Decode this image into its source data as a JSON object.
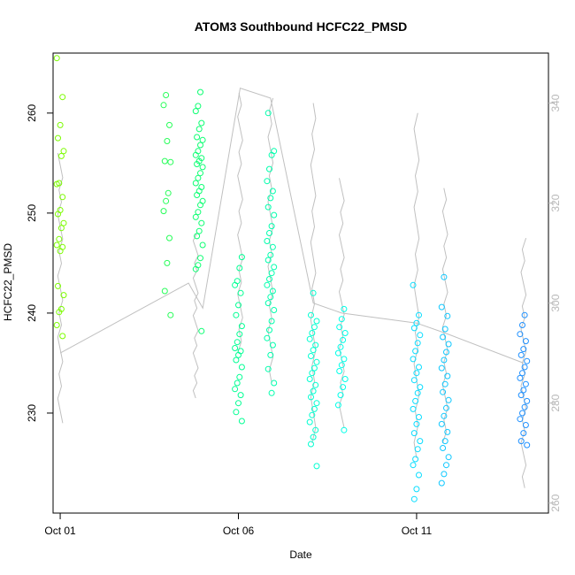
{
  "chart_data": {
    "type": "scatter",
    "title": "ATOM3 Southbound HCFC22_PMSD",
    "xlabel": "Date",
    "ylabel": "HCFC22_PMSD",
    "x_ticks": [
      "Oct 01",
      "Oct 06",
      "Oct 11"
    ],
    "y_ticks_left": [
      "230",
      "240",
      "250",
      "260"
    ],
    "y_ticks_right": [
      "260",
      "280",
      "300",
      "320",
      "340"
    ],
    "ylim_left": [
      220,
      266
    ],
    "ylim_right": [
      258,
      350
    ],
    "xlim_days": [
      0.8,
      14.7
    ],
    "grid": false,
    "legend": "none",
    "point_colors": [
      "#7cfc00",
      "#00ff7f",
      "#00ffff",
      "#1e90ff"
    ],
    "line_color": "#c0c0c0",
    "clusters": [
      {
        "day": 1.0,
        "ys": [
          265.5,
          261.6,
          258.8,
          257.5,
          256.2,
          255.7,
          253.0,
          252.9,
          251.6,
          250.3,
          249.9,
          249.0,
          248.5,
          247.4,
          246.8,
          246.6,
          246.2,
          242.7,
          241.8,
          240.4,
          240.1,
          238.8,
          237.7
        ]
      },
      {
        "day": 4.0,
        "ys": [
          261.8,
          260.8,
          258.8,
          257.2,
          255.2,
          255.1,
          252.0,
          251.2,
          250.2,
          247.5,
          245.0,
          242.2,
          239.8
        ]
      },
      {
        "day": 4.9,
        "ys": [
          262.1,
          260.7,
          260.2,
          259.0,
          258.4,
          257.6,
          257.3,
          256.8,
          256.2,
          255.8,
          255.5,
          255.2,
          254.9,
          254.6,
          254.0,
          253.5,
          253.0,
          252.6,
          252.2,
          251.8,
          251.2,
          250.8,
          250.1,
          249.6,
          249.0,
          248.2,
          247.7,
          246.8,
          245.5,
          244.8,
          244.4,
          238.2
        ]
      },
      {
        "day": 6.0,
        "ys": [
          245.6,
          244.5,
          243.2,
          242.8,
          242.0,
          240.8,
          239.8,
          238.7,
          237.9,
          237.1,
          236.5,
          236.2,
          235.8,
          235.3,
          234.6,
          233.6,
          233.0,
          232.4,
          231.8,
          231.0,
          230.1,
          229.2
        ]
      },
      {
        "day": 6.9,
        "ys": [
          260.0,
          256.2,
          255.8,
          254.4,
          253.2,
          252.2,
          251.5,
          250.6,
          249.8,
          248.7,
          248.0,
          247.2,
          246.6,
          245.8,
          245.3,
          244.6,
          244.0,
          243.4,
          242.8,
          242.2,
          241.6,
          241.0,
          240.3,
          239.2,
          238.3,
          237.5,
          236.8,
          235.8,
          234.4,
          233.0,
          232.0
        ]
      },
      {
        "day": 8.1,
        "ys": [
          242.0,
          239.8,
          239.2,
          238.6,
          238.0,
          237.4,
          236.8,
          236.3,
          235.7,
          235.1,
          234.5,
          234.0,
          233.4,
          232.8,
          232.2,
          231.6,
          231.0,
          230.4,
          229.8,
          229.1,
          228.3,
          227.6,
          226.9,
          224.7
        ]
      },
      {
        "day": 8.9,
        "ys": [
          240.4,
          239.4,
          238.6,
          238.0,
          237.3,
          236.6,
          236.0,
          235.4,
          234.8,
          234.2,
          233.4,
          232.6,
          231.8,
          230.8,
          228.3
        ]
      },
      {
        "day": 11.0,
        "ys": [
          242.8,
          239.8,
          239.0,
          238.5,
          237.8,
          237.0,
          236.2,
          235.4,
          234.6,
          234.0,
          233.3,
          232.6,
          232.0,
          231.2,
          230.4,
          229.6,
          228.9,
          228.0,
          227.2,
          226.4,
          225.4,
          224.8,
          223.8,
          222.4,
          221.4
        ]
      },
      {
        "day": 11.8,
        "ys": [
          243.6,
          240.6,
          239.7,
          238.4,
          237.6,
          236.9,
          236.1,
          235.3,
          234.5,
          233.7,
          232.9,
          232.1,
          231.3,
          230.5,
          229.7,
          228.9,
          228.1,
          227.2,
          226.5,
          225.6,
          224.8,
          223.9,
          223.0
        ]
      },
      {
        "day": 14.0,
        "ys": [
          239.8,
          238.8,
          237.9,
          237.2,
          236.4,
          235.8,
          235.2,
          234.6,
          234.0,
          233.5,
          232.9,
          232.3,
          231.8,
          231.2,
          230.6,
          230.0,
          229.4,
          228.8,
          228.0,
          227.2,
          226.8
        ]
      }
    ],
    "right_axis_connections": [
      [
        1.0,
        290.0
      ],
      [
        4.6,
        304.0
      ],
      [
        5.0,
        299.0
      ],
      [
        6.05,
        343.0
      ],
      [
        6.9,
        341.0
      ],
      [
        8.1,
        300.0
      ],
      [
        8.9,
        298.0
      ],
      [
        11.0,
        296.0
      ],
      [
        11.8,
        294.0
      ],
      [
        14.0,
        288.0
      ]
    ],
    "right_axis_spikes": [
      {
        "day": 1.0,
        "range": [
          276,
          330
        ]
      },
      {
        "day": 4.8,
        "range": [
          281,
          314
        ]
      },
      {
        "day": 6.05,
        "range": [
          290,
          342
        ]
      },
      {
        "day": 6.9,
        "range": [
          284,
          341
        ]
      },
      {
        "day": 8.1,
        "range": [
          272,
          340
        ]
      },
      {
        "day": 8.9,
        "range": [
          275,
          325
        ]
      },
      {
        "day": 11.0,
        "range": [
          269,
          338
        ]
      },
      {
        "day": 11.8,
        "range": [
          272,
          323
        ]
      },
      {
        "day": 14.0,
        "range": [
          263,
          313
        ]
      }
    ]
  }
}
